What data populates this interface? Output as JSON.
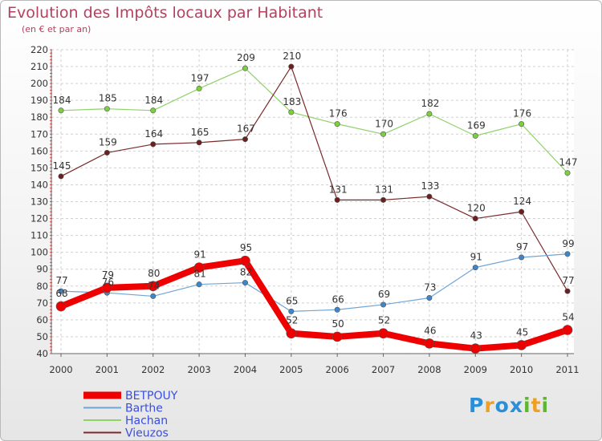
{
  "title": "Evolution des Impôts locaux par Habitant",
  "subtitle": "(en € et par an)",
  "chart_data": {
    "type": "line",
    "title": "Evolution des Impôts locaux par Habitant",
    "subtitle": "(en € et par an)",
    "xlabel": "",
    "ylabel": "",
    "categories": [
      "2000",
      "2001",
      "2002",
      "2003",
      "2004",
      "2005",
      "2006",
      "2007",
      "2008",
      "2009",
      "2010",
      "2011"
    ],
    "y_ticks": [
      40,
      50,
      60,
      70,
      80,
      90,
      100,
      110,
      120,
      130,
      140,
      150,
      160,
      170,
      180,
      190,
      200,
      210,
      220
    ],
    "ylim": [
      40,
      220
    ],
    "grid": true,
    "legend_position": "bottom-left",
    "series": [
      {
        "name": "Hachan",
        "color": "#8fd16a",
        "marker_color": "#7ad13b",
        "values": [
          184,
          185,
          184,
          197,
          209,
          183,
          176,
          170,
          182,
          169,
          176,
          147
        ]
      },
      {
        "name": "Vieuzos",
        "color": "#7a2a2a",
        "marker_color": "#6b1f1f",
        "values": [
          145,
          159,
          164,
          165,
          167,
          210,
          131,
          131,
          133,
          120,
          124,
          77
        ]
      },
      {
        "name": "Barthe",
        "color": "#6ea6d6",
        "marker_color": "#3f86c9",
        "values": [
          77,
          76,
          74,
          81,
          82,
          65,
          66,
          69,
          73,
          91,
          97,
          99
        ]
      },
      {
        "name": "BETPOUY",
        "color": "#ee0000",
        "marker_color": "#ee0000",
        "values": [
          68,
          79,
          80,
          91,
          95,
          52,
          50,
          52,
          46,
          43,
          45,
          54
        ]
      }
    ],
    "legend": [
      {
        "name": "BETPOUY",
        "color": "#ee0000",
        "text_color": "#3a4ee0"
      },
      {
        "name": "Barthe",
        "color": "#6ea6d6",
        "text_color": "#3a4ee0"
      },
      {
        "name": "Hachan",
        "color": "#8fd16a",
        "text_color": "#3a4ee0"
      },
      {
        "name": "Vieuzos",
        "color": "#7a2a2a",
        "text_color": "#3a4ee0"
      }
    ]
  },
  "logo": {
    "letters": [
      "P",
      "r",
      "o",
      "x",
      "i",
      "t",
      "i"
    ],
    "colors": [
      "#2a8fd6",
      "#f0a020",
      "#2a8fd6",
      "#2a8fd6",
      "#5cb82e",
      "#f0a020",
      "#5cb82e"
    ]
  }
}
